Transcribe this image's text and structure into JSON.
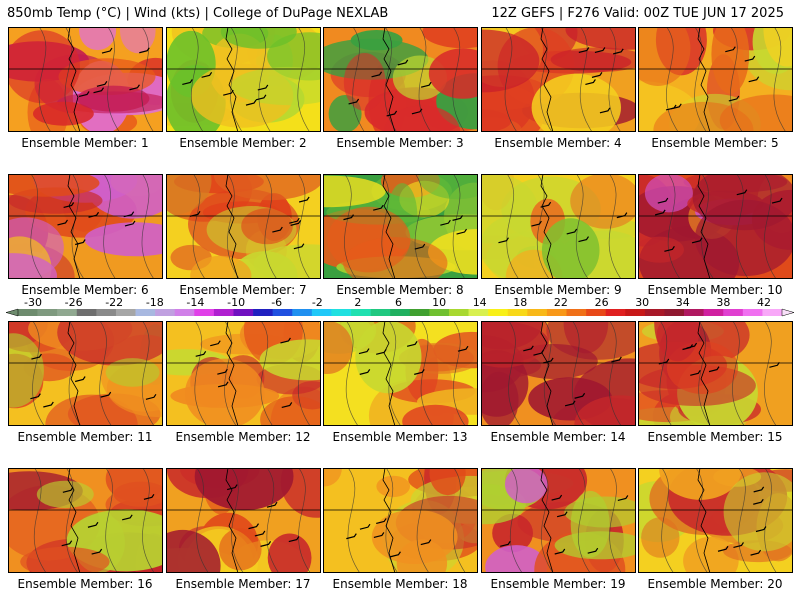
{
  "header": {
    "left": "850mb Temp (°C) | Wind (kts) | College of DuPage NEXLAB",
    "right": "12Z GEFS | F276 Valid: 00Z TUE JUN 17 2025"
  },
  "panels": [
    {
      "label": "Ensemble Member: 1",
      "palette": [
        "#f5a020",
        "#e85a1a",
        "#d82828",
        "#c21a50",
        "#e070d8"
      ]
    },
    {
      "label": "Ensemble Member: 2",
      "palette": [
        "#f4e01a",
        "#f0c020",
        "#b8d830",
        "#6ac02a",
        "#e85a1a"
      ]
    },
    {
      "label": "Ensemble Member: 3",
      "palette": [
        "#f08a20",
        "#e04020",
        "#d82a2a",
        "#c0d830",
        "#3aa040"
      ]
    },
    {
      "label": "Ensemble Member: 4",
      "palette": [
        "#f0a020",
        "#e04020",
        "#c81e2a",
        "#a01830",
        "#f4d020"
      ]
    },
    {
      "label": "Ensemble Member: 5",
      "palette": [
        "#f4b020",
        "#e86a1a",
        "#d8302a",
        "#f4d020",
        "#c8d830"
      ]
    },
    {
      "label": "Ensemble Member: 6",
      "palette": [
        "#f09a20",
        "#e04a1a",
        "#c82a2a",
        "#d060c8",
        "#f4c020"
      ]
    },
    {
      "label": "Ensemble Member: 7",
      "palette": [
        "#f4d020",
        "#f0a020",
        "#e06020",
        "#c8d830",
        "#e0401a"
      ]
    },
    {
      "label": "Ensemble Member: 8",
      "palette": [
        "#3aa040",
        "#60b838",
        "#a0d030",
        "#f0e020",
        "#e85a1a"
      ]
    },
    {
      "label": "Ensemble Member: 9",
      "palette": [
        "#f4d020",
        "#f0b020",
        "#c8d830",
        "#e87020",
        "#80c030"
      ]
    },
    {
      "label": "Ensemble Member: 10",
      "palette": [
        "#e04a1a",
        "#c8282a",
        "#f09020",
        "#d050c0",
        "#a01830"
      ]
    },
    {
      "label": "Ensemble Member: 11",
      "palette": [
        "#f4c020",
        "#f09020",
        "#e05020",
        "#b0d030",
        "#c8282a"
      ]
    },
    {
      "label": "Ensemble Member: 12",
      "palette": [
        "#f4c020",
        "#f08a20",
        "#e04a1a",
        "#c8d830",
        "#c8282a"
      ]
    },
    {
      "label": "Ensemble Member: 13",
      "palette": [
        "#f4e020",
        "#f0b020",
        "#e07020",
        "#c8d830",
        "#e04020"
      ]
    },
    {
      "label": "Ensemble Member: 14",
      "palette": [
        "#f09020",
        "#e04a1a",
        "#c8282a",
        "#a01830",
        "#d050c0"
      ]
    },
    {
      "label": "Ensemble Member: 15",
      "palette": [
        "#f0a020",
        "#e04020",
        "#c8282a",
        "#a01830",
        "#c8d830"
      ]
    },
    {
      "label": "Ensemble Member: 16",
      "palette": [
        "#f09020",
        "#e05020",
        "#c8282a",
        "#a01830",
        "#b8d030"
      ]
    },
    {
      "label": "Ensemble Member: 17",
      "palette": [
        "#f0a020",
        "#e04a1a",
        "#c8282a",
        "#a01830",
        "#f4d020"
      ]
    },
    {
      "label": "Ensemble Member: 18",
      "palette": [
        "#f4c020",
        "#f09020",
        "#e04a1a",
        "#c8d830",
        "#c8282a"
      ]
    },
    {
      "label": "Ensemble Member: 19",
      "palette": [
        "#f09020",
        "#e05020",
        "#c8282a",
        "#d060c8",
        "#b0d030"
      ]
    },
    {
      "label": "Ensemble Member: 20",
      "palette": [
        "#f4d020",
        "#f0a020",
        "#e07020",
        "#c8282a",
        "#c8d830"
      ]
    }
  ],
  "colorbar": {
    "labels": [
      "-30",
      "-26",
      "-22",
      "-18",
      "-14",
      "-10",
      "-6",
      "-2",
      "2",
      "6",
      "10",
      "14",
      "18",
      "22",
      "26",
      "30",
      "34",
      "38",
      "42"
    ],
    "colors": [
      "#6e8c6e",
      "#7f9a7f",
      "#90a890",
      "#6e6e6e",
      "#8a8a8a",
      "#a6a6a6",
      "#a8b8e0",
      "#c0a0e0",
      "#d080e8",
      "#e040e8",
      "#b020d0",
      "#7010c0",
      "#2020c0",
      "#2050e0",
      "#2090f0",
      "#20c8f8",
      "#20e0e0",
      "#20e0b0",
      "#20c880",
      "#20b060",
      "#40a030",
      "#70c030",
      "#a8d830",
      "#d8f050",
      "#f8f018",
      "#f8d818",
      "#f8b818",
      "#f89818",
      "#f07018",
      "#e84818",
      "#e02020",
      "#c81818",
      "#a81828",
      "#901830",
      "#b01860",
      "#d020a0",
      "#e040d0",
      "#f070f0",
      "#f8a8f8"
    ]
  }
}
